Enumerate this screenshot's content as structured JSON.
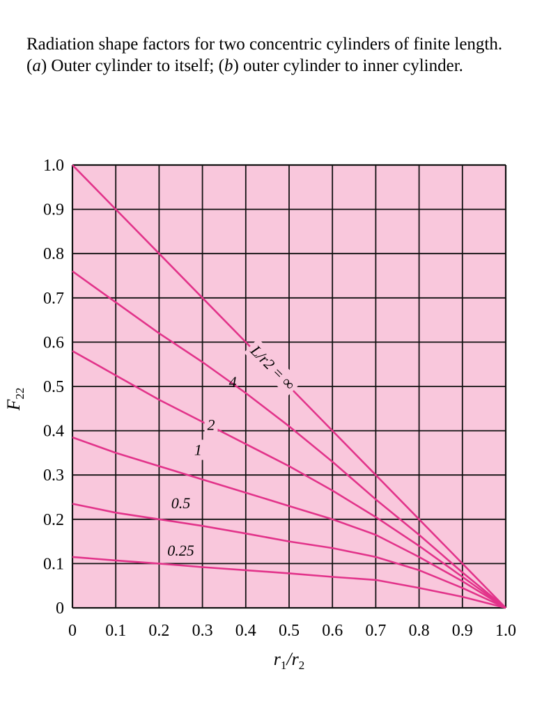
{
  "caption": {
    "part1": "Radiation shape factors for two concentric cylinders of finite length. (",
    "a": "a",
    "part2": ") Outer cylinder to itself; (",
    "b": "b",
    "part3": ") outer cylinder to inner cylinder."
  },
  "colors": {
    "plot_background": "#f9c7dc",
    "grid": "#111111",
    "curve": "#e2338a"
  },
  "chart_data": {
    "type": "line",
    "title": "",
    "xlabel": "r1/r2",
    "ylabel": "F22",
    "xlim": [
      0,
      1.0
    ],
    "ylim": [
      0,
      1.0
    ],
    "grid": true,
    "xticks": [
      "0",
      "0.1",
      "0.2",
      "0.3",
      "0.4",
      "0.5",
      "0.6",
      "0.7",
      "0.8",
      "0.9",
      "1.0"
    ],
    "yticks": [
      "0",
      "0.1",
      "0.2",
      "0.3",
      "0.4",
      "0.5",
      "0.6",
      "0.7",
      "0.8",
      "0.9",
      "1.0"
    ],
    "series": [
      {
        "name": "L/r2 = ∞",
        "label": "L/r2 = ∞",
        "x": [
          0,
          0.1,
          0.2,
          0.3,
          0.4,
          0.5,
          0.6,
          0.7,
          0.8,
          0.9,
          1.0
        ],
        "y": [
          1.0,
          0.9,
          0.8,
          0.7,
          0.6,
          0.5,
          0.4,
          0.3,
          0.2,
          0.1,
          0.0
        ]
      },
      {
        "name": "4",
        "label": "4",
        "x": [
          0,
          0.1,
          0.2,
          0.3,
          0.4,
          0.5,
          0.6,
          0.7,
          0.8,
          0.9,
          1.0
        ],
        "y": [
          0.76,
          0.69,
          0.62,
          0.555,
          0.485,
          0.41,
          0.33,
          0.245,
          0.165,
          0.08,
          0.0
        ]
      },
      {
        "name": "2",
        "label": "2",
        "x": [
          0,
          0.1,
          0.2,
          0.3,
          0.4,
          0.5,
          0.6,
          0.7,
          0.8,
          0.9,
          1.0
        ],
        "y": [
          0.58,
          0.525,
          0.47,
          0.42,
          0.37,
          0.32,
          0.265,
          0.205,
          0.14,
          0.07,
          0.0
        ]
      },
      {
        "name": "1",
        "label": "1",
        "x": [
          0,
          0.1,
          0.2,
          0.3,
          0.4,
          0.5,
          0.6,
          0.7,
          0.8,
          0.9,
          1.0
        ],
        "y": [
          0.385,
          0.35,
          0.32,
          0.29,
          0.26,
          0.23,
          0.2,
          0.165,
          0.115,
          0.06,
          0.0
        ]
      },
      {
        "name": "0.5",
        "label": "0.5",
        "x": [
          0,
          0.1,
          0.2,
          0.3,
          0.4,
          0.5,
          0.6,
          0.7,
          0.8,
          0.9,
          1.0
        ],
        "y": [
          0.235,
          0.215,
          0.2,
          0.185,
          0.168,
          0.15,
          0.135,
          0.115,
          0.085,
          0.045,
          0.0
        ]
      },
      {
        "name": "0.25",
        "label": "0.25",
        "x": [
          0,
          0.1,
          0.2,
          0.3,
          0.4,
          0.5,
          0.6,
          0.7,
          0.8,
          0.9,
          1.0
        ],
        "y": [
          0.115,
          0.107,
          0.1,
          0.092,
          0.085,
          0.078,
          0.07,
          0.063,
          0.045,
          0.025,
          0.0
        ]
      }
    ]
  }
}
